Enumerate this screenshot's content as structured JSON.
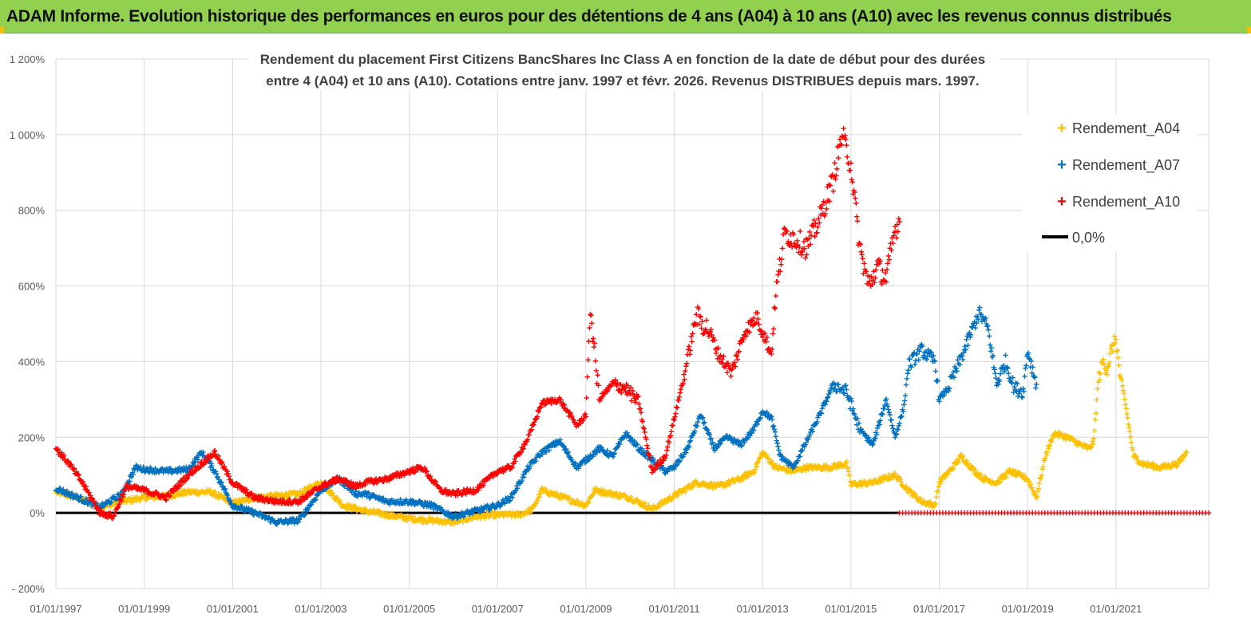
{
  "banner": {
    "title": "ADAM Informe. Evolution historique des performances en euros pour des détentions de 4 ans (A04) à 10 ans (A10) avec les revenus connus distribués"
  },
  "colors": {
    "banner_bg": "#92d050",
    "a04": "#ffc000",
    "a07": "#0070c0",
    "a10": "#ff0000",
    "zero": "#000000",
    "grid": "#d9d9d9"
  },
  "chart_data": {
    "type": "scatter",
    "title_lines": [
      "Rendement du placement First Citizens BancShares Inc Class A en fonction de la date de début pour des durées",
      "entre 4 (A04) et 10 ans (A10).  Cotations entre janv. 1997 et févr. 2026. Revenus DISTRIBUES depuis mars. 1997."
    ],
    "xlabel": "",
    "ylabel": "",
    "xlim": [
      1997.0,
      2023.1
    ],
    "ylim": [
      -200,
      1200
    ],
    "y_ticks": [
      {
        "value": -200,
        "label": "- 200%"
      },
      {
        "value": 0,
        "label": "0%"
      },
      {
        "value": 200,
        "label": "200%"
      },
      {
        "value": 400,
        "label": "400%"
      },
      {
        "value": 600,
        "label": "600%"
      },
      {
        "value": 800,
        "label": "800%"
      },
      {
        "value": 1000,
        "label": "1 000%"
      },
      {
        "value": 1200,
        "label": "1 200%"
      }
    ],
    "x_ticks": [
      {
        "value": 1997,
        "label": "01/01/1997"
      },
      {
        "value": 1999,
        "label": "01/01/1999"
      },
      {
        "value": 2001,
        "label": "01/01/2001"
      },
      {
        "value": 2003,
        "label": "01/01/2003"
      },
      {
        "value": 2005,
        "label": "01/01/2005"
      },
      {
        "value": 2007,
        "label": "01/01/2007"
      },
      {
        "value": 2009,
        "label": "01/01/2009"
      },
      {
        "value": 2011,
        "label": "01/01/2011"
      },
      {
        "value": 2013,
        "label": "01/01/2013"
      },
      {
        "value": 2015,
        "label": "01/01/2015"
      },
      {
        "value": 2017,
        "label": "01/01/2017"
      },
      {
        "value": 2019,
        "label": "01/01/2019"
      },
      {
        "value": 2021,
        "label": "01/01/2021"
      }
    ],
    "grid": true,
    "legend_position": "top-right",
    "series": [
      {
        "name": "Rendement_A04",
        "marker": "+",
        "color": "#ffc000",
        "points": [
          [
            1997.0,
            55
          ],
          [
            1997.5,
            40
          ],
          [
            1998.0,
            15
          ],
          [
            1998.5,
            30
          ],
          [
            1999.0,
            40
          ],
          [
            1999.5,
            45
          ],
          [
            2000.0,
            55
          ],
          [
            2000.5,
            55
          ],
          [
            2001.0,
            25
          ],
          [
            2001.5,
            40
          ],
          [
            2002.0,
            45
          ],
          [
            2002.5,
            50
          ],
          [
            2003.0,
            80
          ],
          [
            2003.5,
            20
          ],
          [
            2004.0,
            5
          ],
          [
            2004.5,
            -5
          ],
          [
            2005.0,
            -15
          ],
          [
            2005.5,
            -20
          ],
          [
            2006.0,
            -25
          ],
          [
            2006.5,
            -10
          ],
          [
            2007.0,
            -5
          ],
          [
            2007.5,
            -5
          ],
          [
            2007.8,
            10
          ],
          [
            2008.0,
            60
          ],
          [
            2008.5,
            40
          ],
          [
            2009.0,
            20
          ],
          [
            2009.2,
            60
          ],
          [
            2009.6,
            50
          ],
          [
            2010.0,
            40
          ],
          [
            2010.5,
            10
          ],
          [
            2011.0,
            45
          ],
          [
            2011.5,
            80
          ],
          [
            2012.0,
            70
          ],
          [
            2012.5,
            90
          ],
          [
            2012.8,
            110
          ],
          [
            2013.0,
            160
          ],
          [
            2013.3,
            120
          ],
          [
            2013.7,
            110
          ],
          [
            2014.0,
            120
          ],
          [
            2014.5,
            120
          ],
          [
            2014.9,
            130
          ],
          [
            2015.0,
            75
          ],
          [
            2015.5,
            80
          ],
          [
            2016.0,
            100
          ],
          [
            2016.3,
            60
          ],
          [
            2016.6,
            30
          ],
          [
            2016.9,
            20
          ],
          [
            2017.0,
            80
          ],
          [
            2017.3,
            120
          ],
          [
            2017.5,
            150
          ],
          [
            2017.8,
            110
          ],
          [
            2018.0,
            90
          ],
          [
            2018.3,
            80
          ],
          [
            2018.6,
            110
          ],
          [
            2019.0,
            90
          ],
          [
            2019.2,
            40
          ],
          [
            2019.4,
            150
          ],
          [
            2019.6,
            210
          ],
          [
            2019.9,
            200
          ],
          [
            2020.2,
            180
          ],
          [
            2020.4,
            170
          ],
          [
            2020.5,
            190
          ],
          [
            2020.6,
            350
          ],
          [
            2020.7,
            400
          ],
          [
            2020.8,
            380
          ],
          [
            2020.9,
            430
          ],
          [
            2021.0,
            460
          ],
          [
            2021.1,
            350
          ],
          [
            2021.2,
            300
          ],
          [
            2021.4,
            150
          ],
          [
            2021.6,
            130
          ],
          [
            2022.0,
            120
          ],
          [
            2022.4,
            130
          ],
          [
            2022.6,
            160
          ]
        ]
      },
      {
        "name": "Rendement_A07",
        "marker": "+",
        "color": "#0070c0",
        "points": [
          [
            1997.0,
            65
          ],
          [
            1997.5,
            40
          ],
          [
            1998.0,
            15
          ],
          [
            1998.5,
            50
          ],
          [
            1998.8,
            120
          ],
          [
            1999.0,
            115
          ],
          [
            1999.5,
            110
          ],
          [
            2000.0,
            115
          ],
          [
            2000.3,
            160
          ],
          [
            2000.6,
            110
          ],
          [
            2001.0,
            20
          ],
          [
            2001.5,
            0
          ],
          [
            2002.0,
            -25
          ],
          [
            2002.5,
            -20
          ],
          [
            2003.0,
            60
          ],
          [
            2003.4,
            90
          ],
          [
            2003.8,
            50
          ],
          [
            2004.0,
            50
          ],
          [
            2004.5,
            30
          ],
          [
            2005.0,
            30
          ],
          [
            2005.5,
            20
          ],
          [
            2006.0,
            -10
          ],
          [
            2006.5,
            5
          ],
          [
            2007.0,
            20
          ],
          [
            2007.3,
            40
          ],
          [
            2007.7,
            120
          ],
          [
            2008.0,
            160
          ],
          [
            2008.4,
            190
          ],
          [
            2008.8,
            120
          ],
          [
            2009.0,
            140
          ],
          [
            2009.3,
            170
          ],
          [
            2009.6,
            150
          ],
          [
            2009.9,
            210
          ],
          [
            2010.2,
            170
          ],
          [
            2010.5,
            140
          ],
          [
            2010.8,
            110
          ],
          [
            2011.0,
            120
          ],
          [
            2011.3,
            170
          ],
          [
            2011.6,
            260
          ],
          [
            2011.9,
            170
          ],
          [
            2012.2,
            200
          ],
          [
            2012.5,
            180
          ],
          [
            2012.8,
            220
          ],
          [
            2013.0,
            270
          ],
          [
            2013.2,
            250
          ],
          [
            2013.4,
            150
          ],
          [
            2013.7,
            120
          ],
          [
            2014.0,
            190
          ],
          [
            2014.3,
            260
          ],
          [
            2014.6,
            340
          ],
          [
            2014.9,
            320
          ],
          [
            2015.2,
            220
          ],
          [
            2015.5,
            180
          ],
          [
            2015.8,
            300
          ],
          [
            2016.0,
            200
          ],
          [
            2016.2,
            280
          ],
          [
            2016.3,
            390
          ],
          [
            2016.6,
            430
          ],
          [
            2016.9,
            400
          ],
          [
            2017.0,
            300
          ],
          [
            2017.2,
            330
          ],
          [
            2017.5,
            410
          ],
          [
            2017.7,
            470
          ],
          [
            2017.9,
            530
          ],
          [
            2018.1,
            490
          ],
          [
            2018.3,
            340
          ],
          [
            2018.5,
            400
          ],
          [
            2018.7,
            330
          ],
          [
            2018.9,
            320
          ],
          [
            2019.0,
            430
          ],
          [
            2019.2,
            340
          ]
        ]
      },
      {
        "name": "Rendement_A10",
        "marker": "+",
        "color": "#ff0000",
        "points": [
          [
            1997.0,
            170
          ],
          [
            1997.3,
            130
          ],
          [
            1997.6,
            80
          ],
          [
            1998.0,
            0
          ],
          [
            1998.3,
            -10
          ],
          [
            1998.6,
            70
          ],
          [
            1999.0,
            60
          ],
          [
            1999.5,
            40
          ],
          [
            2000.0,
            100
          ],
          [
            2000.4,
            140
          ],
          [
            2000.6,
            160
          ],
          [
            2001.0,
            80
          ],
          [
            2001.5,
            40
          ],
          [
            2002.0,
            30
          ],
          [
            2002.5,
            30
          ],
          [
            2003.0,
            70
          ],
          [
            2003.4,
            90
          ],
          [
            2003.8,
            70
          ],
          [
            2004.0,
            80
          ],
          [
            2004.5,
            90
          ],
          [
            2005.0,
            110
          ],
          [
            2005.3,
            120
          ],
          [
            2005.7,
            60
          ],
          [
            2006.0,
            50
          ],
          [
            2006.5,
            60
          ],
          [
            2007.0,
            110
          ],
          [
            2007.3,
            120
          ],
          [
            2007.7,
            200
          ],
          [
            2008.0,
            290
          ],
          [
            2008.4,
            300
          ],
          [
            2008.8,
            230
          ],
          [
            2009.0,
            260
          ],
          [
            2009.1,
            540
          ],
          [
            2009.3,
            300
          ],
          [
            2009.6,
            340
          ],
          [
            2009.9,
            330
          ],
          [
            2010.2,
            290
          ],
          [
            2010.5,
            110
          ],
          [
            2010.8,
            150
          ],
          [
            2011.0,
            250
          ],
          [
            2011.2,
            350
          ],
          [
            2011.5,
            520
          ],
          [
            2011.8,
            480
          ],
          [
            2012.0,
            420
          ],
          [
            2012.3,
            370
          ],
          [
            2012.6,
            480
          ],
          [
            2012.9,
            520
          ],
          [
            2013.0,
            480
          ],
          [
            2013.2,
            420
          ],
          [
            2013.3,
            580
          ],
          [
            2013.5,
            740
          ],
          [
            2013.8,
            720
          ],
          [
            2014.0,
            700
          ],
          [
            2014.3,
            780
          ],
          [
            2014.6,
            880
          ],
          [
            2014.8,
            1000
          ],
          [
            2015.0,
            920
          ],
          [
            2015.2,
            700
          ],
          [
            2015.4,
            600
          ],
          [
            2015.6,
            650
          ],
          [
            2015.8,
            620
          ],
          [
            2016.0,
            750
          ],
          [
            2016.1,
            770
          ]
        ]
      },
      {
        "name": "0,0%",
        "marker": "line",
        "color": "#000000",
        "points": [
          [
            1997.0,
            0
          ],
          [
            2016.1,
            0
          ]
        ]
      }
    ],
    "a10_zero_segment": {
      "from": 2016.1,
      "to": 2023.1,
      "value": 0
    }
  }
}
